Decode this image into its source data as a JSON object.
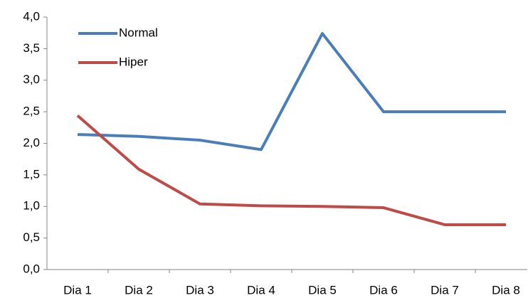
{
  "chart_data": {
    "type": "line",
    "categories": [
      "Dia 1",
      "Dia 2",
      "Dia 3",
      "Dia 4",
      "Dia 5",
      "Dia 6",
      "Dia 7",
      "Dia 8"
    ],
    "series": [
      {
        "name": "Normal",
        "color": "#4a7ebb",
        "values": [
          2.14,
          2.11,
          2.05,
          1.9,
          3.74,
          2.5,
          2.5,
          2.5
        ]
      },
      {
        "name": "Hiper",
        "color": "#be4b48",
        "values": [
          2.44,
          1.59,
          1.04,
          1.01,
          1.0,
          0.98,
          0.71,
          0.71
        ]
      }
    ],
    "ylim": [
      0,
      4
    ],
    "yticks": [
      {
        "value": 0,
        "label": "0,0"
      },
      {
        "value": 0.5,
        "label": "0,5"
      },
      {
        "value": 1,
        "label": "1,0"
      },
      {
        "value": 1.5,
        "label": "1,5"
      },
      {
        "value": 2,
        "label": "2,0"
      },
      {
        "value": 2.5,
        "label": "2,5"
      },
      {
        "value": 3,
        "label": "3,0"
      },
      {
        "value": 3.5,
        "label": "3,5"
      },
      {
        "value": 4,
        "label": "4,0"
      }
    ],
    "grid": false,
    "legend": "top-left"
  }
}
